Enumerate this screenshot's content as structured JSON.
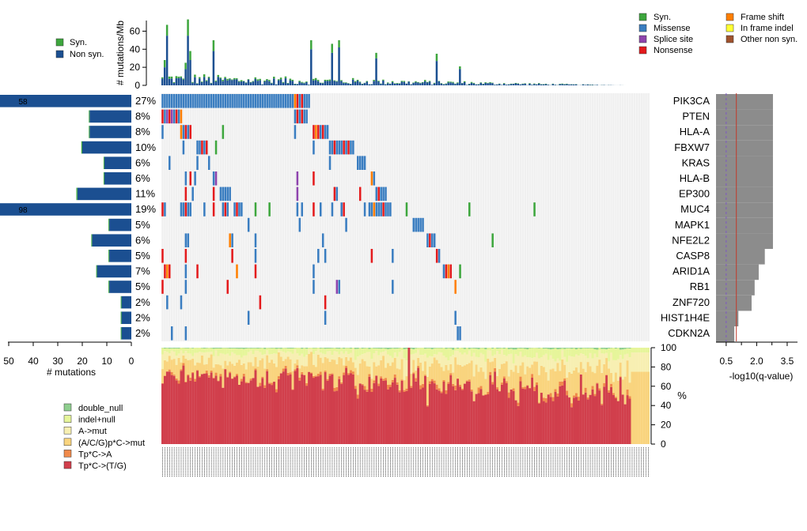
{
  "chart_data": {
    "type": "oncoplot",
    "top_panel": {
      "ylabel": "# mutations/Mb",
      "yticks": [
        0,
        20,
        40,
        60
      ],
      "ylim": [
        0,
        70
      ],
      "legend": [
        "Syn.",
        "Non syn."
      ],
      "colors": {
        "syn": "#3da63d",
        "nonsyn": "#1b4f91"
      },
      "highlight_samples": [
        {
          "sample": 1,
          "nonsyn": 20,
          "syn": 8
        },
        {
          "sample": 2,
          "nonsyn": 55,
          "syn": 12
        },
        {
          "sample": 10,
          "nonsyn": 18,
          "syn": 7
        },
        {
          "sample": 11,
          "nonsyn": 55,
          "syn": 18
        },
        {
          "sample": 12,
          "nonsyn": 28,
          "syn": 10
        },
        {
          "sample": 22,
          "nonsyn": 38,
          "syn": 12
        },
        {
          "sample": 64,
          "nonsyn": 40,
          "syn": 10
        },
        {
          "sample": 73,
          "nonsyn": 36,
          "syn": 10
        },
        {
          "sample": 76,
          "nonsyn": 42,
          "syn": 8
        },
        {
          "sample": 92,
          "nonsyn": 30,
          "syn": 6
        },
        {
          "sample": 118,
          "nonsyn": 27,
          "syn": 8
        },
        {
          "sample": 128,
          "nonsyn": 18,
          "syn": 3
        }
      ]
    },
    "variant_legend": [
      "Syn.",
      "Missense",
      "Splice site",
      "Nonsense",
      "Frame shift",
      "In frame indel",
      "Other non syn."
    ],
    "variant_colors": {
      "syn": "#3da63d",
      "missense": "#3a7dc0",
      "splice": "#8e44ad",
      "nonsense": "#e31a1c",
      "frameshift": "#ff7f00",
      "inframe": "#ffff33",
      "other": "#a0522d"
    },
    "genes": [
      "PIK3CA",
      "PTEN",
      "HLA-A",
      "FBXW7",
      "KRAS",
      "HLA-B",
      "EP300",
      "MUC4",
      "MAPK1",
      "NFE2L2",
      "CASP8",
      "ARID1A",
      "RB1",
      "ZNF720",
      "HIST1H4E",
      "CDKN2A"
    ],
    "percentages": [
      "27%",
      "8%",
      "8%",
      "10%",
      "6%",
      "6%",
      "11%",
      "19%",
      "5%",
      "6%",
      "5%",
      "7%",
      "5%",
      "2%",
      "2%",
      "2%"
    ],
    "left_panel": {
      "xlabel": "# mutations",
      "xticks": [
        50,
        40,
        30,
        20,
        10,
        0
      ],
      "mutations": [
        58,
        17,
        17,
        20,
        11,
        11,
        22,
        98,
        9,
        16,
        9,
        14,
        9,
        4,
        4,
        4
      ],
      "labels": [
        "58",
        "",
        "",
        "",
        "",
        "",
        "",
        "98",
        "",
        "",
        "",
        "",
        "",
        "",
        "",
        ""
      ]
    },
    "right_panel": {
      "xlabel": "-log10(q-value)",
      "xticks": [
        "0.5",
        "2.0",
        "3.5"
      ],
      "xlim": [
        0,
        4.0
      ],
      "q": [
        2.8,
        2.8,
        2.8,
        2.8,
        2.8,
        2.8,
        2.8,
        2.8,
        2.8,
        2.8,
        2.4,
        2.1,
        1.9,
        1.75,
        1.1,
        0.9
      ],
      "threshold_red": 1.0,
      "threshold_purple": 0.5
    },
    "bottom_panel": {
      "ylabel": "%",
      "yticks": [
        0,
        20,
        40,
        60,
        80,
        100
      ],
      "legend": [
        "double_null",
        "indel+null",
        "A->mut",
        "(A/C/G)p*C->mut",
        "Tp*C->A",
        "Tp*C->(T/G)"
      ],
      "colors": [
        "#8fcf8f",
        "#e6f59a",
        "#f7efb2",
        "#f9d47e",
        "#f08a4b",
        "#d13f4c"
      ]
    },
    "n_samples": 210
  }
}
